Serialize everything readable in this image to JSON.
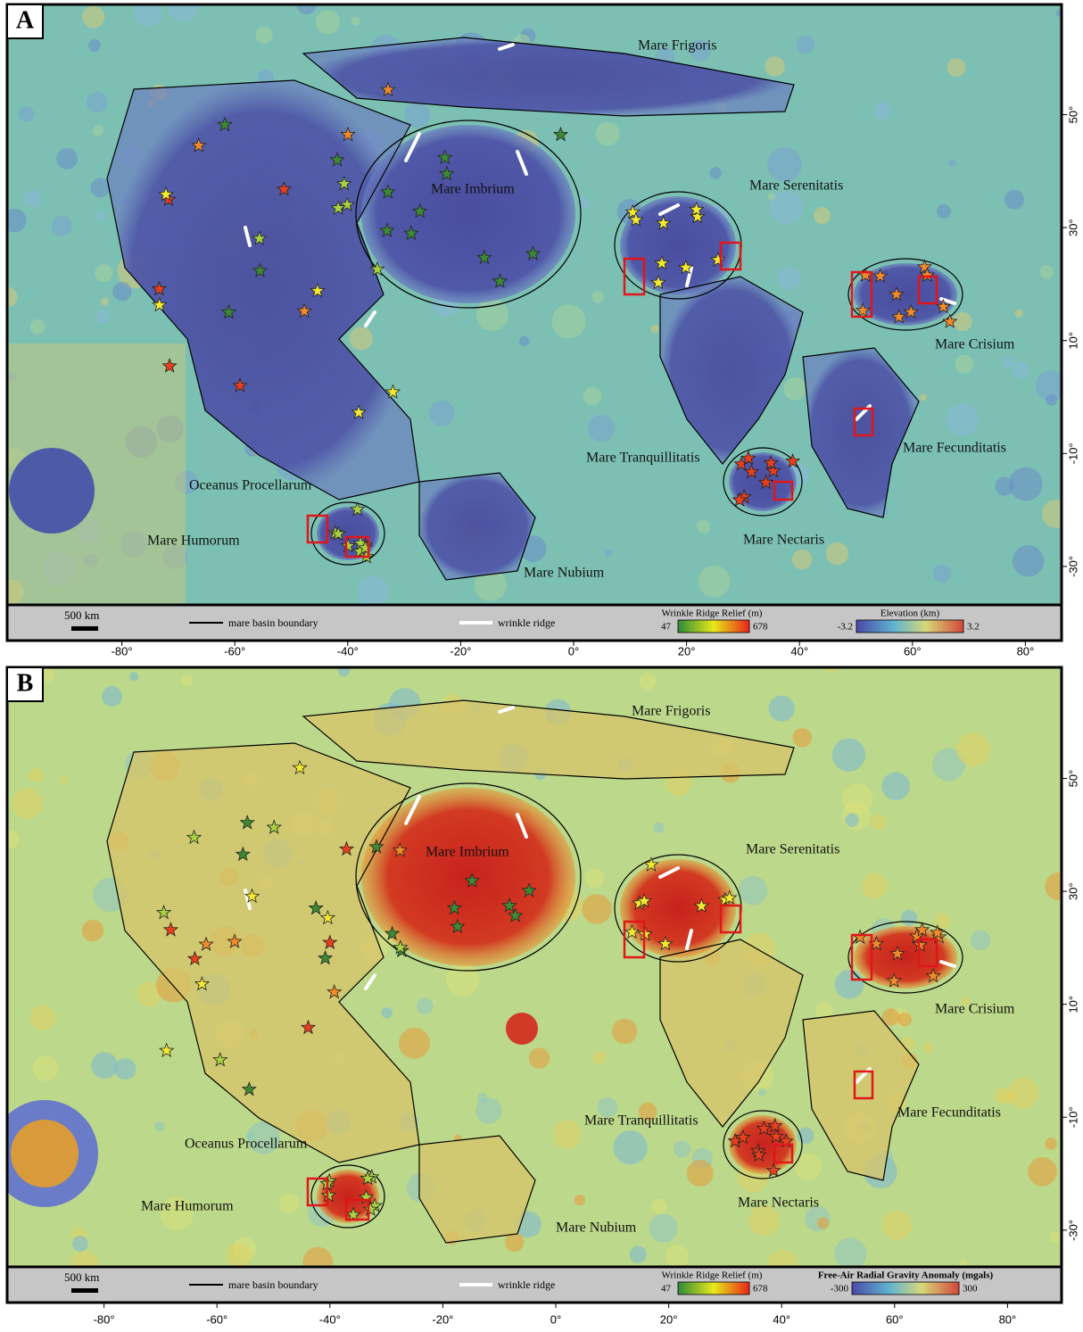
{
  "panels": [
    {
      "letter": "A",
      "labels": [
        "Mare Frigoris",
        "Mare Imbrium",
        "Mare Serenitatis",
        "Mare Crisium",
        "Mare Fecunditatis",
        "Mare Tranquillitatis",
        "Mare Nectaris",
        "Mare Nubium",
        "Mare Humorum",
        "Oceanus Procellarum"
      ],
      "legend": {
        "scale": "500 km",
        "boundary": "mare basin boundary",
        "ridge": "wrinkle ridge",
        "relief_title": "Wrinkle Ridge Relief (m)",
        "relief_min": 47,
        "relief_max": 678,
        "map_title": "Elevation (km)",
        "map_min": -3.2,
        "map_max": 3.2
      },
      "xticks": [
        {
          "value": -80,
          "label": "-80°"
        },
        {
          "value": -60,
          "label": "-60°"
        },
        {
          "value": -40,
          "label": "-40°"
        },
        {
          "value": -20,
          "label": "-20°"
        },
        {
          "value": 0,
          "label": "0°"
        },
        {
          "value": 20,
          "label": "20°"
        },
        {
          "value": 40,
          "label": "40°"
        },
        {
          "value": 60,
          "label": "60°"
        },
        {
          "value": 80,
          "label": "80°"
        }
      ],
      "yticks": [
        {
          "value": 50,
          "label": "50°"
        },
        {
          "value": 30,
          "label": "30°"
        },
        {
          "value": 10,
          "label": "10°"
        },
        {
          "value": -10,
          "label": "-10°"
        },
        {
          "value": -30,
          "label": "-30°"
        }
      ]
    },
    {
      "letter": "B",
      "labels": [
        "Mare Frigoris",
        "Mare Imbrium",
        "Mare Serenitatis",
        "Mare Crisium",
        "Mare Fecunditatis",
        "Mare Tranquillitatis",
        "Mare Nectaris",
        "Mare Nubium",
        "Mare Humorum",
        "Oceanus Procellarum"
      ],
      "legend": {
        "scale": "500 km",
        "boundary": "mare basin boundary",
        "ridge": "wrinkle ridge",
        "relief_title": "Wrinkle Ridge Relief (m)",
        "relief_min": 47,
        "relief_max": 678,
        "map_title": "Free-Air Radial Gravity Anomaly (mgals)",
        "map_min": -300,
        "map_max": 300
      },
      "xticks": [
        {
          "value": -80,
          "label": "-80°"
        },
        {
          "value": -60,
          "label": "-60°"
        },
        {
          "value": -40,
          "label": "-40°"
        },
        {
          "value": -20,
          "label": "-20°"
        },
        {
          "value": 0,
          "label": "0°"
        },
        {
          "value": 20,
          "label": "20°"
        },
        {
          "value": 40,
          "label": "40°"
        },
        {
          "value": 60,
          "label": "60°"
        },
        {
          "value": 80,
          "label": "80°"
        }
      ],
      "yticks": [
        {
          "value": 50,
          "label": "50°"
        },
        {
          "value": 30,
          "label": "30°"
        },
        {
          "value": 10,
          "label": "10°"
        },
        {
          "value": -10,
          "label": "-10°"
        },
        {
          "value": -30,
          "label": "-30°"
        }
      ]
    }
  ]
}
